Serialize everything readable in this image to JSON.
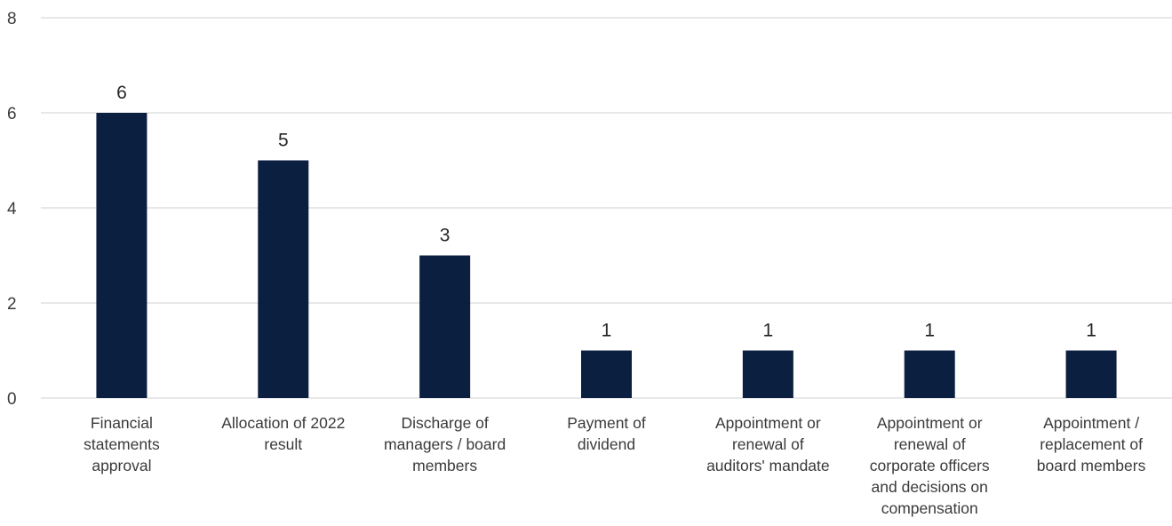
{
  "chart_data": {
    "type": "bar",
    "categories": [
      [
        "Financial",
        "statements",
        "approval"
      ],
      [
        "Allocation of 2022",
        "result"
      ],
      [
        "Discharge of",
        "managers / board",
        "members"
      ],
      [
        "Payment of",
        "dividend"
      ],
      [
        "Appointment or",
        "renewal of",
        "auditors' mandate"
      ],
      [
        "Appointment  or",
        "renewal of",
        "corporate officers",
        "and decisions on",
        "compensation"
      ],
      [
        "Appointment /",
        "replacement of",
        "board members"
      ]
    ],
    "values": [
      6,
      5,
      3,
      1,
      1,
      1,
      1
    ],
    "data_labels": [
      "6",
      "5",
      "3",
      "1",
      "1",
      "1",
      "1"
    ],
    "yticks": [
      "0",
      "2",
      "4",
      "6",
      "8"
    ],
    "ylim": [
      0,
      8
    ],
    "grid": true,
    "legend": "none",
    "title": "",
    "xlabel": "",
    "ylabel": "",
    "colors": {
      "bar": "#0b1f40",
      "grid": "#d9d9d9"
    }
  }
}
